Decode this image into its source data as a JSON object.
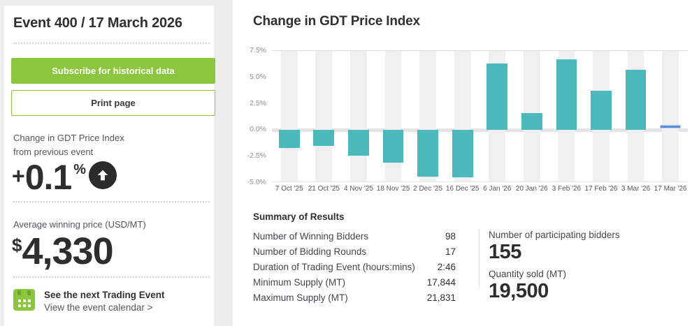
{
  "sidebar": {
    "title": "Event 400 / 17 March 2026",
    "subscribe_button": "Subscribe for historical data",
    "print_button": "Print page",
    "change_label_line1": "Change in GDT Price Index",
    "change_label_line2": "from previous event",
    "change": {
      "sign": "+",
      "value": "0.1",
      "unit": "%",
      "direction": "up"
    },
    "avg_price_label": "Average winning price (USD/MT)",
    "avg_price": {
      "currency": "$",
      "value": "4,330"
    },
    "next_event_title": "See the next Trading Event",
    "next_event_link": "View the event calendar >"
  },
  "chart_data": {
    "type": "bar",
    "title": "Change in GDT Price Index",
    "categories": [
      "7 Oct '25",
      "21 Oct '25",
      "4 Nov '25",
      "18 Nov '25",
      "2 Dec '25",
      "16 Dec '25",
      "6 Jan '26",
      "20 Jan '26",
      "3 Feb '26",
      "17 Feb '26",
      "3 Mar '26",
      "17 Mar '26"
    ],
    "values": [
      -1.7,
      -1.5,
      -2.4,
      -3.1,
      -4.4,
      -4.5,
      6.3,
      1.6,
      6.7,
      3.7,
      5.7,
      0.1
    ],
    "unit": "%",
    "ylim": [
      -5.0,
      7.5
    ],
    "yticks": [
      "7.5%",
      "5.0%",
      "2.5%",
      "0.0%",
      "-2.5%",
      "-5.0%"
    ],
    "xlabel": "",
    "ylabel": "",
    "legend": "none",
    "grid": "striped-columns",
    "bar_color": "#4bb8bc",
    "highlight_last_bar_color": "#5a8fd8",
    "highlight_index": 11
  },
  "summary": {
    "heading": "Summary of Results",
    "rows": [
      {
        "label": "Number of Winning Bidders",
        "value": "98"
      },
      {
        "label": "Number of Bidding Rounds",
        "value": "17"
      },
      {
        "label": "Duration of Trading Event (hours:mins)",
        "value": "2:46"
      },
      {
        "label": "Minimum Supply (MT)",
        "value": "17,844"
      },
      {
        "label": "Maximum Supply (MT)",
        "value": "21,831"
      }
    ],
    "stats": [
      {
        "label": "Number of participating bidders",
        "value": "155"
      },
      {
        "label": "Quantity sold (MT)",
        "value": "19,500"
      }
    ]
  },
  "colors": {
    "accent_green": "#8cc63f",
    "bar_teal": "#4bb8bc",
    "bar_highlight_blue": "#5a8fd8",
    "text_dark": "#303030",
    "text_gray": "#54565a",
    "stripe_gray": "#f0f0f0",
    "page_bg": "#ededed"
  }
}
